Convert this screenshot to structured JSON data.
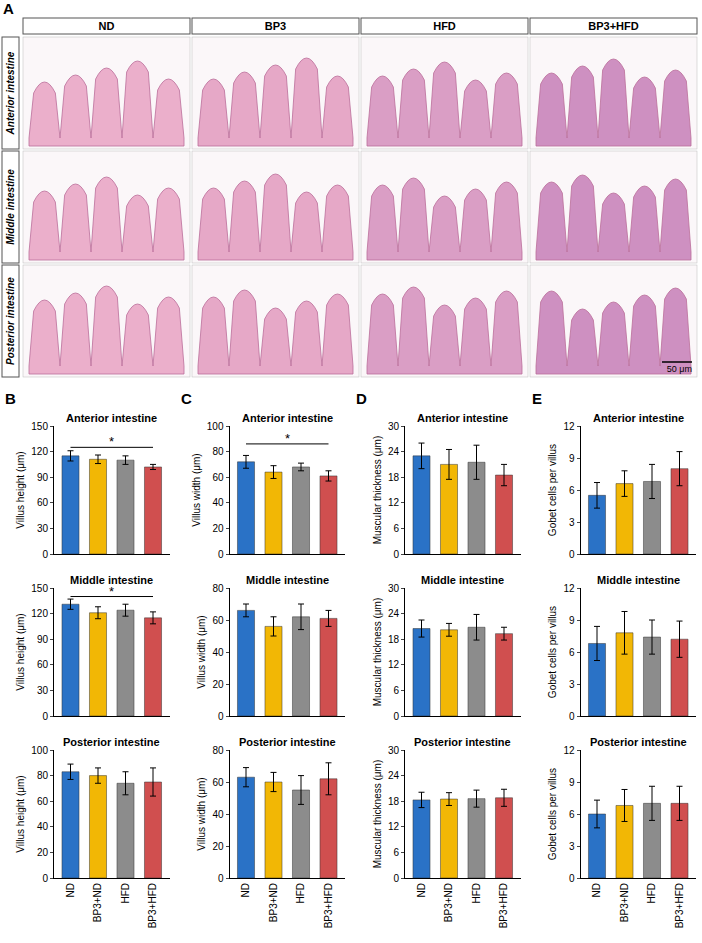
{
  "panel_A": {
    "letter": "A",
    "columns": [
      "ND",
      "BP3",
      "HFD",
      "BP3+HFD"
    ],
    "rows": [
      "Anterior intestine",
      "Middle intestine",
      "Posterior intestine"
    ],
    "scale_bar": "50 μm"
  },
  "chart_data": [
    {
      "panel": "B",
      "type": "bar",
      "title": "Anterior intestine",
      "y_label": "Villus height (μm)",
      "categories": [
        "ND",
        "BP3+ND",
        "HFD",
        "BP3+HFD"
      ],
      "values": [
        115,
        111,
        110,
        102
      ],
      "errors": [
        6,
        5,
        5,
        3
      ],
      "colors": [
        "#2a72c6",
        "#f2b705",
        "#8c8c8c",
        "#d04f4f"
      ],
      "ylim": [
        0,
        150
      ],
      "yticks": [
        0,
        30,
        60,
        90,
        120,
        150
      ],
      "tick_labels": "y",
      "significance": [
        {
          "from": "ND",
          "to": "BP3+HFD",
          "y": 125,
          "label": "*"
        }
      ]
    },
    {
      "type": "bar",
      "title": "Middle intestine",
      "y_label": "Villus height (μm)",
      "categories": [
        "ND",
        "BP3+ND",
        "HFD",
        "BP3+HFD"
      ],
      "values": [
        131,
        121,
        124,
        115
      ],
      "errors": [
        6,
        7,
        7,
        7
      ],
      "colors": [
        "#2a72c6",
        "#f2b705",
        "#8c8c8c",
        "#d04f4f"
      ],
      "ylim": [
        0,
        150
      ],
      "yticks": [
        0,
        30,
        60,
        90,
        120,
        150
      ],
      "tick_labels": "y",
      "significance": [
        {
          "from": "ND",
          "to": "BP3+HFD",
          "y": 140,
          "label": "*"
        }
      ]
    },
    {
      "type": "bar",
      "title": "Posterior intestine",
      "y_label": "Villus height (μm)",
      "categories": [
        "ND",
        "BP3+ND",
        "HFD",
        "BP3+HFD"
      ],
      "values": [
        83,
        80,
        74,
        75
      ],
      "errors": [
        6,
        6,
        9,
        11
      ],
      "colors": [
        "#2a72c6",
        "#f2b705",
        "#8c8c8c",
        "#d04f4f"
      ],
      "ylim": [
        0,
        100
      ],
      "yticks": [
        0,
        20,
        40,
        60,
        80,
        100
      ]
    },
    {
      "panel": "C",
      "type": "bar",
      "title": "Anterior intestine",
      "y_label": "Villus width (μm)",
      "categories": [
        "ND",
        "BP3+ND",
        "HFD",
        "BP3+HFD"
      ],
      "values": [
        72,
        64,
        68,
        61
      ],
      "errors": [
        5,
        5,
        3,
        4
      ],
      "colors": [
        "#2a72c6",
        "#f2b705",
        "#8c8c8c",
        "#d04f4f"
      ],
      "ylim": [
        0,
        100
      ],
      "yticks": [
        0,
        20,
        40,
        60,
        80,
        100
      ],
      "tick_labels": "y",
      "significance": [
        {
          "from": "ND",
          "to": "BP3+HFD",
          "y": 86,
          "label": "*"
        }
      ]
    },
    {
      "type": "bar",
      "title": "Middle intestine",
      "y_label": "Villus width (μm)",
      "categories": [
        "ND",
        "BP3+ND",
        "HFD",
        "BP3+HFD"
      ],
      "values": [
        66,
        56,
        62,
        61
      ],
      "errors": [
        4,
        6,
        8,
        5
      ],
      "colors": [
        "#2a72c6",
        "#f2b705",
        "#8c8c8c",
        "#d04f4f"
      ],
      "ylim": [
        0,
        80
      ],
      "yticks": [
        0,
        20,
        40,
        60,
        80
      ],
      "tick_labels": "y"
    },
    {
      "type": "bar",
      "title": "Posterior intestine",
      "y_label": "Villus width (μm)",
      "categories": [
        "ND",
        "BP3+ND",
        "HFD",
        "BP3+HFD"
      ],
      "values": [
        63,
        60,
        55,
        62
      ],
      "errors": [
        6,
        6,
        9,
        10
      ],
      "colors": [
        "#2a72c6",
        "#f2b705",
        "#8c8c8c",
        "#d04f4f"
      ],
      "ylim": [
        0,
        80
      ],
      "yticks": [
        0,
        20,
        40,
        60,
        80
      ]
    },
    {
      "panel": "D",
      "type": "bar",
      "title": "Anterior intestine",
      "y_label": "Muscular thickness (μm)",
      "categories": [
        "ND",
        "BP3+ND",
        "HFD",
        "BP3+HFD"
      ],
      "values": [
        23,
        21,
        21.5,
        18.5
      ],
      "errors": [
        3,
        3.5,
        4,
        2.5
      ],
      "colors": [
        "#2a72c6",
        "#f2b705",
        "#8c8c8c",
        "#d04f4f"
      ],
      "ylim": [
        0,
        30
      ],
      "yticks": [
        0,
        6,
        12,
        18,
        24,
        30
      ],
      "tick_labels": "y"
    },
    {
      "type": "bar",
      "title": "Middle intestine",
      "y_label": "Muscular thickness (μm)",
      "categories": [
        "ND",
        "BP3+ND",
        "HFD",
        "BP3+HFD"
      ],
      "values": [
        20.5,
        20.2,
        20.8,
        19.3
      ],
      "errors": [
        2,
        1.5,
        3,
        1.5
      ],
      "colors": [
        "#2a72c6",
        "#f2b705",
        "#8c8c8c",
        "#d04f4f"
      ],
      "ylim": [
        0,
        30
      ],
      "yticks": [
        0,
        6,
        12,
        18,
        24,
        30
      ],
      "tick_labels": "y"
    },
    {
      "type": "bar",
      "title": "Posterior intestine",
      "y_label": "Muscular thickness (μm)",
      "categories": [
        "ND",
        "BP3+ND",
        "HFD",
        "BP3+HFD"
      ],
      "values": [
        18.3,
        18.5,
        18.6,
        18.8
      ],
      "errors": [
        1.8,
        1.5,
        2,
        2
      ],
      "colors": [
        "#2a72c6",
        "#f2b705",
        "#8c8c8c",
        "#d04f4f"
      ],
      "ylim": [
        0,
        30
      ],
      "yticks": [
        0,
        6,
        12,
        18,
        24,
        30
      ]
    },
    {
      "panel": "E",
      "type": "bar",
      "title": "Anterior intestine",
      "y_label": "Gobet cells per villus",
      "categories": [
        "ND",
        "BP3+ND",
        "HFD",
        "BP3+HFD"
      ],
      "values": [
        5.5,
        6.6,
        6.8,
        8
      ],
      "errors": [
        1.2,
        1.2,
        1.6,
        1.6
      ],
      "colors": [
        "#2a72c6",
        "#f2b705",
        "#8c8c8c",
        "#d04f4f"
      ],
      "ylim": [
        0,
        12
      ],
      "yticks": [
        0,
        3,
        6,
        9,
        12
      ],
      "tick_labels": "y"
    },
    {
      "type": "bar",
      "title": "Middle intestine",
      "y_label": "Gobet cells per villus",
      "categories": [
        "ND",
        "BP3+ND",
        "HFD",
        "BP3+HFD"
      ],
      "values": [
        6.8,
        7.8,
        7.4,
        7.2
      ],
      "errors": [
        1.6,
        2,
        1.6,
        1.7
      ],
      "colors": [
        "#2a72c6",
        "#f2b705",
        "#8c8c8c",
        "#d04f4f"
      ],
      "ylim": [
        0,
        12
      ],
      "yticks": [
        0,
        3,
        6,
        9,
        12
      ],
      "tick_labels": "y"
    },
    {
      "type": "bar",
      "title": "Posterior intestine",
      "y_label": "Gobet cells per villus",
      "categories": [
        "ND",
        "BP3+ND",
        "HFD",
        "BP3+HFD"
      ],
      "values": [
        6,
        6.8,
        7,
        7
      ],
      "errors": [
        1.3,
        1.5,
        1.6,
        1.6
      ],
      "colors": [
        "#2a72c6",
        "#f2b705",
        "#8c8c8c",
        "#d04f4f"
      ],
      "ylim": [
        0,
        12
      ],
      "yticks": [
        0,
        3,
        6,
        9,
        12
      ]
    }
  ]
}
